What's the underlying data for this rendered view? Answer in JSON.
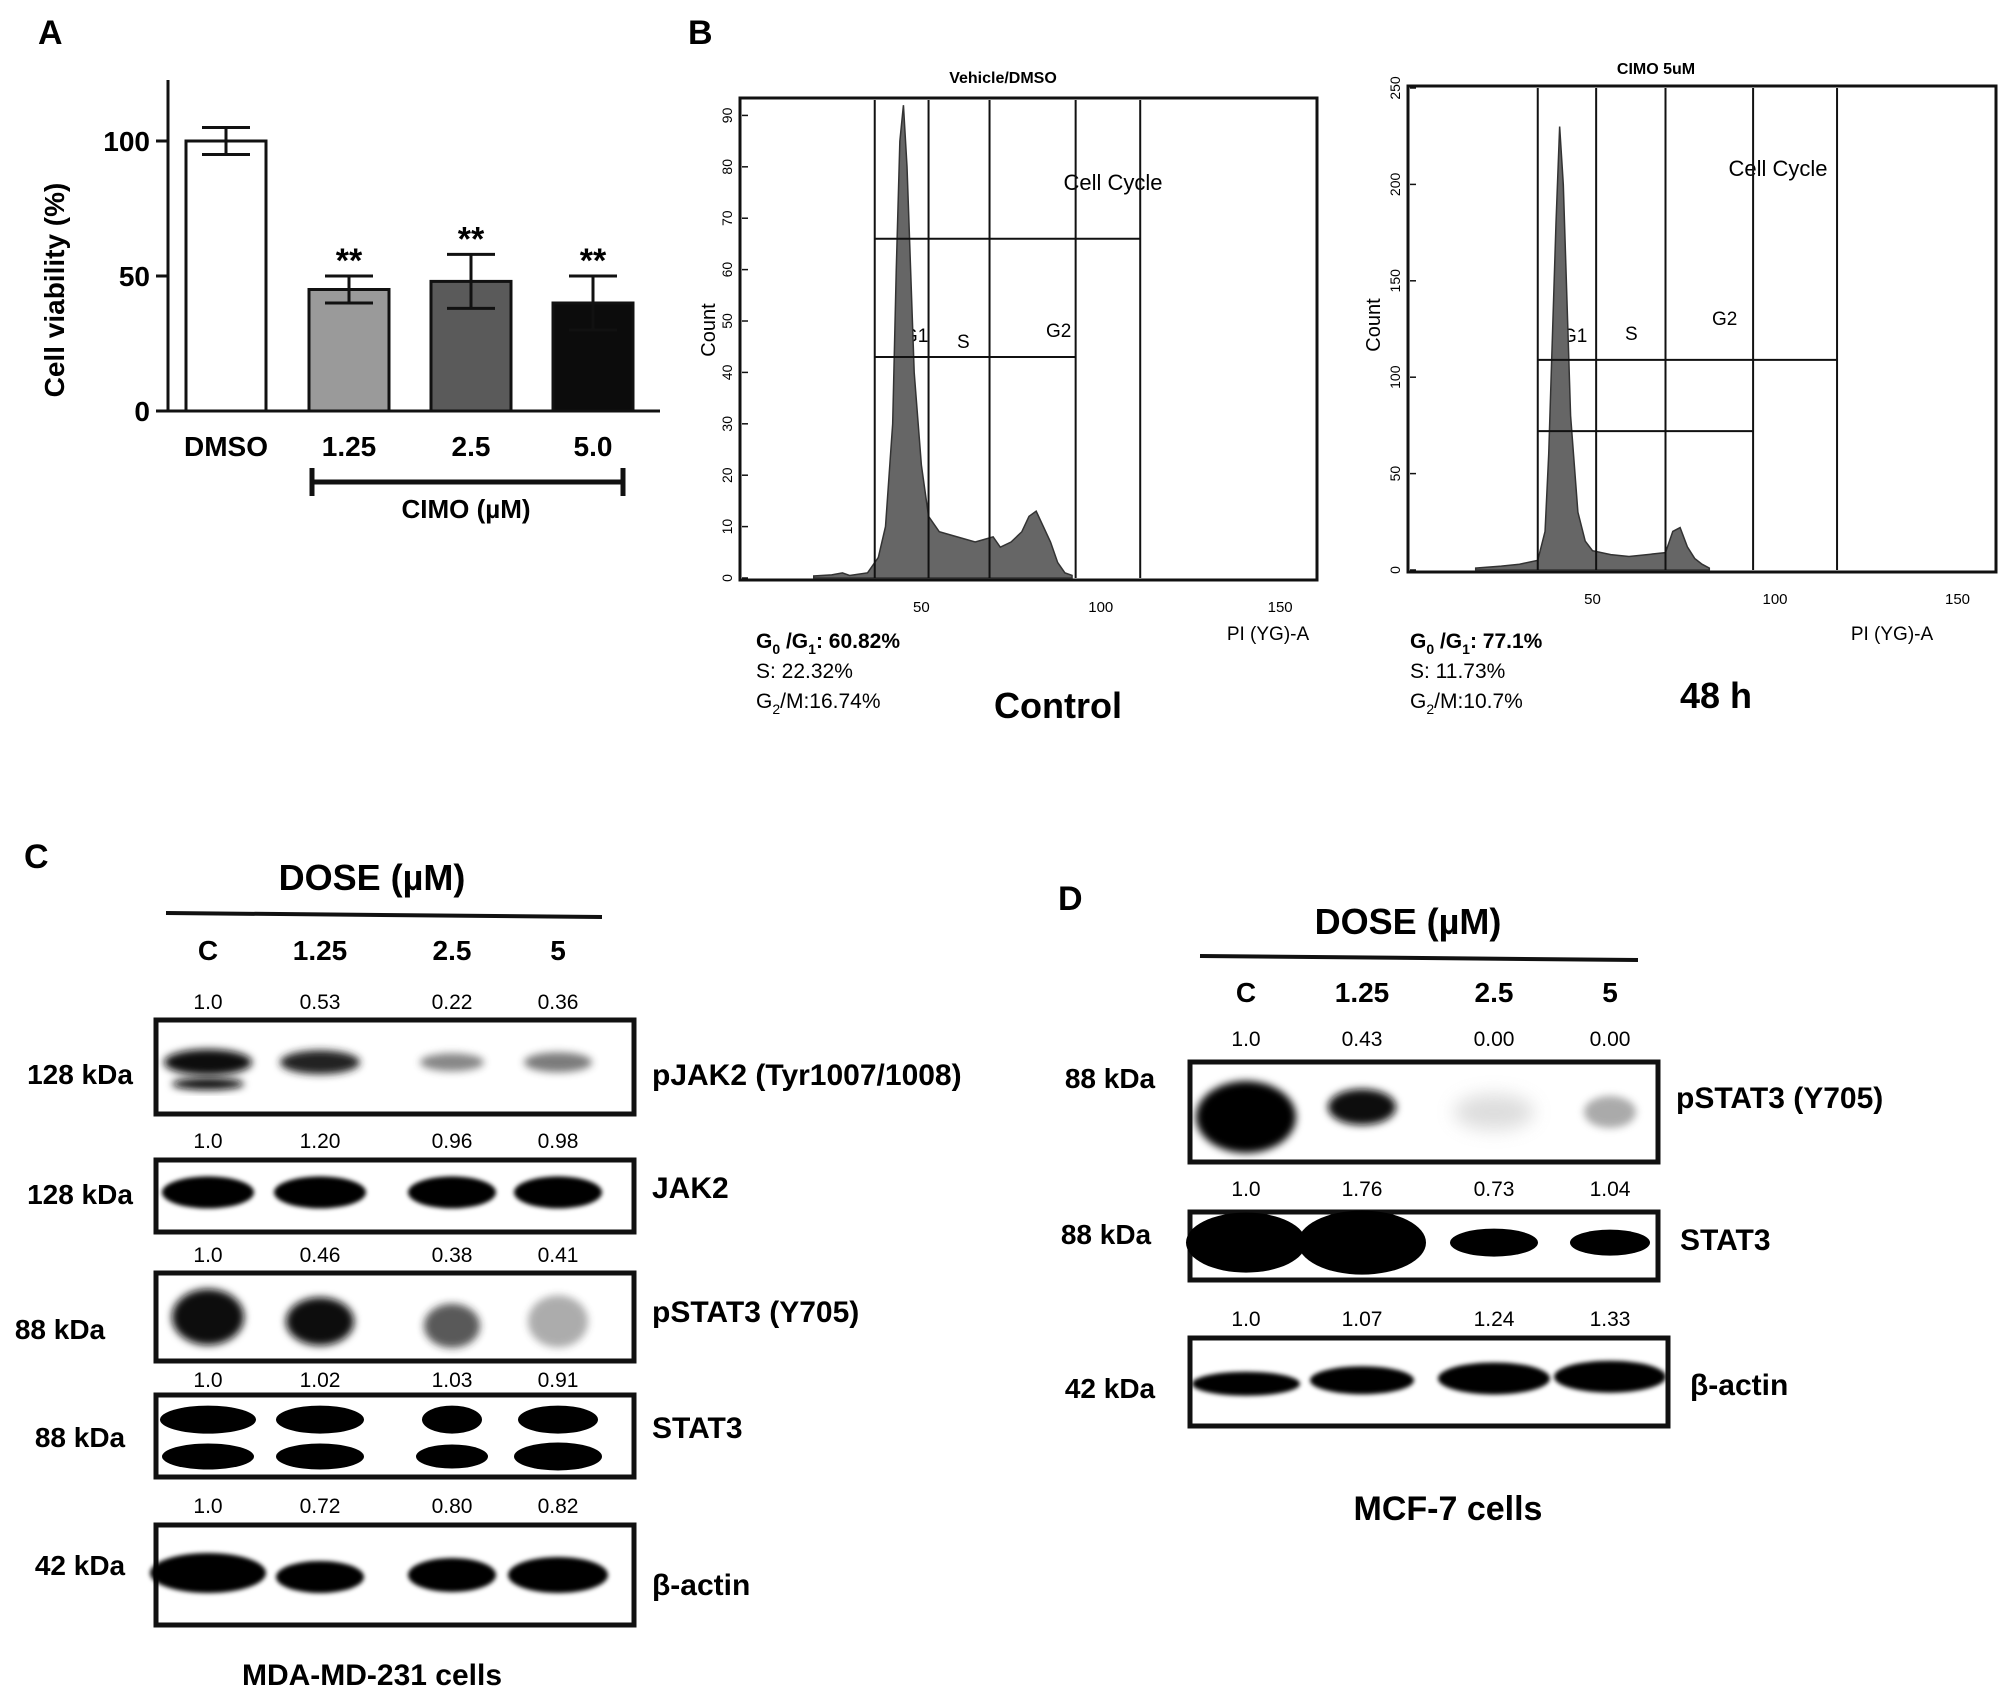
{
  "panelA": {
    "letter": "A",
    "chart_data": {
      "type": "bar",
      "ylabel": "Cell viability (%)",
      "ylim": [
        0,
        120
      ],
      "yticks": [
        "0",
        "50",
        "100"
      ],
      "categories": [
        "DMSO",
        "1.25",
        "2.5",
        "5.0"
      ],
      "values": [
        100,
        45,
        48,
        40
      ],
      "errors": [
        5,
        5,
        10,
        10
      ],
      "significance": [
        "",
        "**",
        "**",
        "**"
      ],
      "bar_colors": [
        "#ffffff",
        "#9a9a9a",
        "#5a5a5a",
        "#0c0c0c"
      ],
      "group_label": "CIMO (µM)"
    }
  },
  "panelB": {
    "letter": "B",
    "left": {
      "header": "Vehicle/DMSO",
      "ylabel": "Count",
      "yticks": [
        "0",
        "10",
        "20",
        "30",
        "40",
        "50",
        "60",
        "70",
        "80",
        "90"
      ],
      "xticks": [
        "50",
        "100",
        "150"
      ],
      "xlabel": "PI (YG)-A",
      "region_title": "Cell Cycle",
      "gates": [
        "G1",
        "S",
        "G2"
      ],
      "g0g1_label": "G",
      "g0g1_sub1": "0",
      "g0g1_mid": " /G",
      "g0g1_sub2": "1",
      "g0g1_value": ": 60.82%",
      "s_text": "S: 22.32%",
      "g2m_prefix": "G",
      "g2m_sub": "2",
      "g2m_value": "/M:16.74%",
      "condition": "Control"
    },
    "right": {
      "header": "CIMO 5uM",
      "ylabel": "Count",
      "yticks": [
        "0",
        "50",
        "100",
        "150",
        "200",
        "250"
      ],
      "xticks": [
        "50",
        "100",
        "150"
      ],
      "xlabel": "PI (YG)-A",
      "region_title": "Cell Cycle",
      "gates": [
        "G1",
        "S",
        "G2"
      ],
      "g0g1_label": "G",
      "g0g1_sub1": "0",
      "g0g1_mid": " /G",
      "g0g1_sub2": "1",
      "g0g1_value": ": 77.1%",
      "s_text": "S: 11.73%",
      "g2m_prefix": "G",
      "g2m_sub": "2",
      "g2m_value": "/M:10.7%",
      "condition": "48 h"
    }
  },
  "panelC": {
    "letter": "C",
    "dose_title": "DOSE (µM)",
    "lanes": [
      "C",
      "1.25",
      "2.5",
      "5"
    ],
    "blots": [
      {
        "size": "128 kDa",
        "label": "pJAK2  (Tyr1007/1008)",
        "values": [
          "1.0",
          "0.53",
          "0.22",
          "0.36"
        ]
      },
      {
        "size": "128 kDa",
        "label": "JAK2",
        "values": [
          "1.0",
          "1.20",
          "0.96",
          "0.98"
        ]
      },
      {
        "size": "88 kDa",
        "label": "pSTAT3 (Y705)",
        "values": [
          "1.0",
          "0.46",
          "0.38",
          "0.41"
        ]
      },
      {
        "size": "88 kDa",
        "label": "STAT3",
        "values": [
          "1.0",
          "1.02",
          "1.03",
          "0.91"
        ]
      },
      {
        "size": "42 kDa",
        "label": "β-actin",
        "values": [
          "1.0",
          "0.72",
          "0.80",
          "0.82"
        ]
      }
    ],
    "cell_line": "MDA-MD-231 cells"
  },
  "panelD": {
    "letter": "D",
    "dose_title": "DOSE (µM)",
    "lanes": [
      "C",
      "1.25",
      "2.5",
      "5"
    ],
    "blots": [
      {
        "size": "88 kDa",
        "label": "pSTAT3 (Y705)",
        "values": [
          "1.0",
          "0.43",
          "0.00",
          "0.00"
        ]
      },
      {
        "size": "88 kDa",
        "label": "STAT3",
        "values": [
          "1.0",
          "1.76",
          "0.73",
          "1.04"
        ]
      },
      {
        "size": "42 kDa",
        "label": "β-actin",
        "values": [
          "1.0",
          "1.07",
          "1.24",
          "1.33"
        ]
      }
    ],
    "cell_line": "MCF-7 cells"
  }
}
